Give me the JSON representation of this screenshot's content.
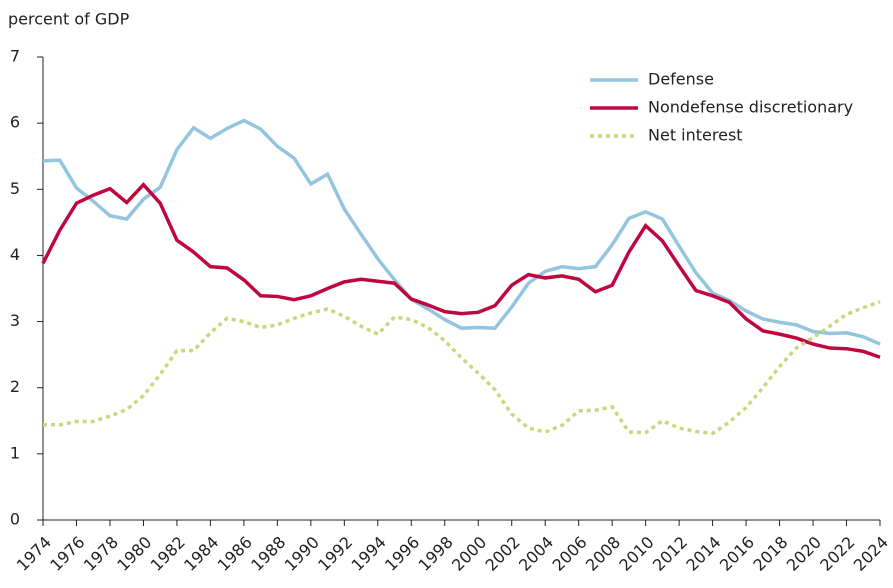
{
  "chart_data": {
    "type": "line",
    "y_label": "percent of GDP",
    "x": [
      1974,
      1975,
      1976,
      1977,
      1978,
      1979,
      1980,
      1981,
      1982,
      1983,
      1984,
      1985,
      1986,
      1987,
      1988,
      1989,
      1990,
      1991,
      1992,
      1993,
      1994,
      1995,
      1996,
      1997,
      1998,
      1999,
      2000,
      2001,
      2002,
      2003,
      2004,
      2005,
      2006,
      2007,
      2008,
      2009,
      2010,
      2011,
      2012,
      2013,
      2014,
      2015,
      2016,
      2017,
      2018,
      2019,
      2020,
      2021,
      2022,
      2023,
      2024
    ],
    "xlim": [
      1974,
      2024
    ],
    "xticks": [
      1974,
      1976,
      1978,
      1980,
      1982,
      1984,
      1986,
      1988,
      1990,
      1992,
      1994,
      1996,
      1998,
      2000,
      2002,
      2004,
      2006,
      2008,
      2010,
      2012,
      2014,
      2016,
      2018,
      2020,
      2022,
      2024
    ],
    "ylim": [
      0,
      7
    ],
    "yticks": [
      0,
      1,
      2,
      3,
      4,
      5,
      6,
      7
    ],
    "grid": false,
    "legend": "upper right",
    "series": [
      {
        "name": "Defense",
        "color": "#93c5de",
        "style": "solid",
        "values": [
          5.43,
          5.44,
          5.02,
          4.82,
          4.6,
          4.55,
          4.85,
          5.03,
          5.6,
          5.93,
          5.77,
          5.92,
          6.04,
          5.91,
          5.65,
          5.47,
          5.08,
          5.23,
          4.7,
          4.32,
          3.95,
          3.63,
          3.34,
          3.19,
          3.03,
          2.9,
          2.91,
          2.9,
          3.22,
          3.58,
          3.76,
          3.83,
          3.8,
          3.83,
          4.16,
          4.56,
          4.66,
          4.55,
          4.14,
          3.74,
          3.43,
          3.32,
          3.16,
          3.04,
          2.99,
          2.95,
          2.85,
          2.82,
          2.83,
          2.77,
          2.66
        ]
      },
      {
        "name": "Nondefense discretionary",
        "color": "#c0063e",
        "style": "solid",
        "values": [
          3.88,
          4.38,
          4.79,
          4.91,
          5.01,
          4.8,
          5.07,
          4.79,
          4.23,
          4.05,
          3.83,
          3.81,
          3.63,
          3.39,
          3.38,
          3.33,
          3.39,
          3.5,
          3.6,
          3.64,
          3.61,
          3.58,
          3.34,
          3.25,
          3.15,
          3.12,
          3.14,
          3.24,
          3.55,
          3.71,
          3.66,
          3.69,
          3.64,
          3.45,
          3.55,
          4.05,
          4.45,
          4.22,
          3.84,
          3.47,
          3.39,
          3.29,
          3.04,
          2.86,
          2.81,
          2.75,
          2.66,
          2.6,
          2.59,
          2.55,
          2.46
        ]
      },
      {
        "name": "Net interest",
        "color": "#c8d77a",
        "style": "dotted",
        "values": [
          1.44,
          1.44,
          1.49,
          1.49,
          1.57,
          1.67,
          1.88,
          2.2,
          2.56,
          2.56,
          2.83,
          3.05,
          3.0,
          2.91,
          2.95,
          3.05,
          3.13,
          3.19,
          3.08,
          2.93,
          2.81,
          3.07,
          3.03,
          2.91,
          2.71,
          2.45,
          2.22,
          1.97,
          1.6,
          1.39,
          1.33,
          1.43,
          1.65,
          1.66,
          1.71,
          1.33,
          1.32,
          1.5,
          1.39,
          1.34,
          1.31,
          1.48,
          1.7,
          2.0,
          2.32,
          2.6,
          2.76,
          2.93,
          3.11,
          3.21,
          3.3
        ]
      }
    ]
  }
}
